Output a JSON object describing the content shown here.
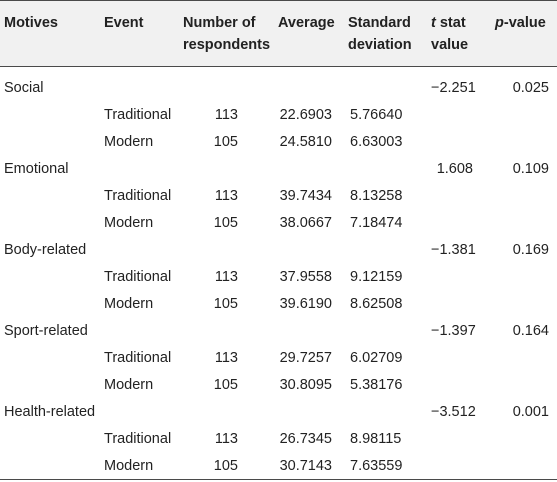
{
  "headers": {
    "motives": "Motives",
    "event": "Event",
    "respondents_line1": "Number of",
    "respondents_line2": "respondents",
    "average": "Average",
    "sd_line1": "Standard",
    "sd_line2": "deviation",
    "t_italic": "t",
    "t_rest": " stat",
    "t_line2": "value",
    "p_italic": "p",
    "p_rest": "-value"
  },
  "groups": [
    {
      "motive": "Social",
      "t_value": "−2.251",
      "p_value": "0.025",
      "rows": [
        {
          "event": "Traditional",
          "respondents": "113",
          "average": "22.6903",
          "sd": "5.76640"
        },
        {
          "event": "Modern",
          "respondents": "105",
          "average": "24.5810",
          "sd": "6.63003"
        }
      ]
    },
    {
      "motive": "Emotional",
      "t_value": "1.608",
      "p_value": "0.109",
      "rows": [
        {
          "event": "Traditional",
          "respondents": "113",
          "average": "39.7434",
          "sd": "8.13258"
        },
        {
          "event": "Modern",
          "respondents": "105",
          "average": "38.0667",
          "sd": "7.18474"
        }
      ]
    },
    {
      "motive": "Body-related",
      "t_value": "−1.381",
      "p_value": "0.169",
      "rows": [
        {
          "event": "Traditional",
          "respondents": "113",
          "average": "37.9558",
          "sd": "9.12159"
        },
        {
          "event": "Modern",
          "respondents": "105",
          "average": "39.6190",
          "sd": "8.62508"
        }
      ]
    },
    {
      "motive": "Sport-related",
      "t_value": "−1.397",
      "p_value": "0.164",
      "rows": [
        {
          "event": "Traditional",
          "respondents": "113",
          "average": "29.7257",
          "sd": "6.02709"
        },
        {
          "event": "Modern",
          "respondents": "105",
          "average": "30.8095",
          "sd": "5.38176"
        }
      ]
    },
    {
      "motive": "Health-related",
      "t_value": "−3.512",
      "p_value": "0.001",
      "rows": [
        {
          "event": "Traditional",
          "respondents": "113",
          "average": "26.7345",
          "sd": "8.98115"
        },
        {
          "event": "Modern",
          "respondents": "105",
          "average": "30.7143",
          "sd": "7.63559"
        }
      ]
    }
  ]
}
